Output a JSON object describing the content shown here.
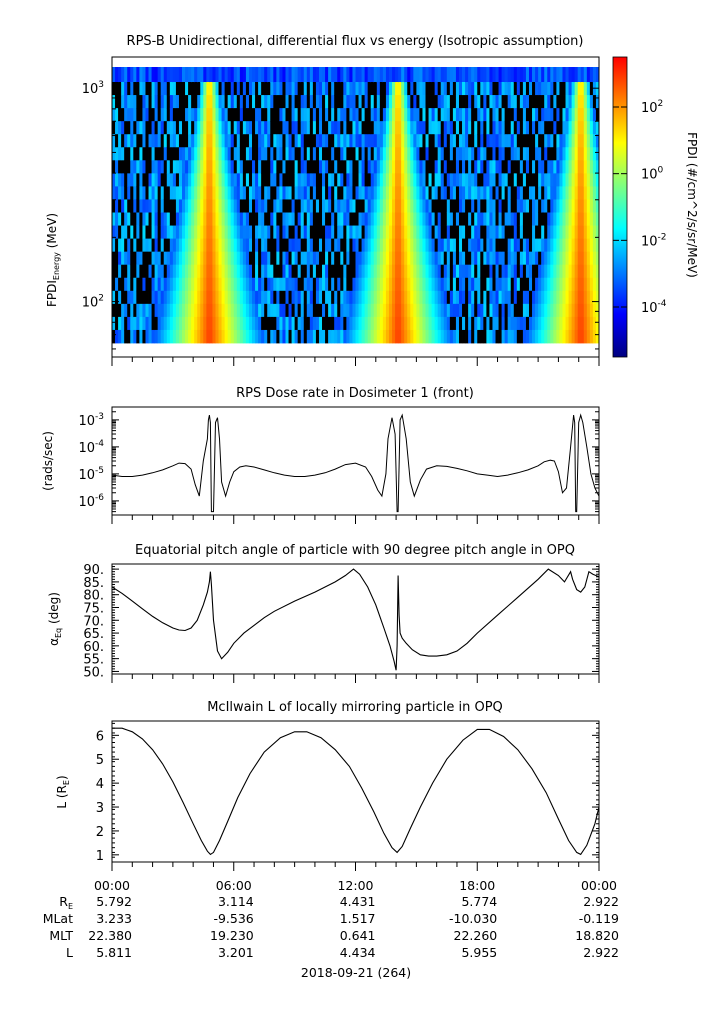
{
  "figure": {
    "date_label": "2018-09-21 (264)",
    "ephemeris_rows": [
      {
        "label": "R",
        "sub": "E",
        "values": [
          "5.792",
          "3.114",
          "4.431",
          "5.774",
          "2.922"
        ]
      },
      {
        "label": "MLat",
        "sub": "",
        "values": [
          "3.233",
          "-9.536",
          "1.517",
          "-10.030",
          "-0.119"
        ]
      },
      {
        "label": "MLT",
        "sub": "",
        "values": [
          "22.380",
          "19.230",
          "0.641",
          "22.260",
          "18.820"
        ]
      },
      {
        "label": "L",
        "sub": "",
        "values": [
          "5.811",
          "3.201",
          "4.434",
          "5.955",
          "2.922"
        ]
      }
    ]
  },
  "chart_data": [
    {
      "type": "heatmap",
      "title": "RPS-B  Unidirectional, differential flux vs energy (Isotropic assumption)",
      "ylabel_main": "FPDI",
      "ylabel_sub": "Energy",
      "ylabel_unit": " (MeV)",
      "yscale": "log",
      "ylim": [
        55,
        1400
      ],
      "y_ticks": [
        {
          "value": 100,
          "base": "10",
          "exp": "2"
        },
        {
          "value": 1000,
          "base": "10",
          "exp": "3"
        }
      ],
      "x_ticks": [
        "00:00",
        "06:00",
        "12:00",
        "18:00",
        "00:00"
      ],
      "xlim_hours": [
        0,
        24
      ],
      "colorbar": {
        "label": "FPDI (#/cm^2/s/sr/MeV)",
        "scale": "log",
        "range_exp": [
          -5.5,
          3.5
        ],
        "ticks": [
          {
            "exp": "2",
            "value": 2
          },
          {
            "exp": "0",
            "value": 0
          },
          {
            "exp": "-2",
            "value": -2
          },
          {
            "exp": "-4",
            "value": -4
          }
        ],
        "colors": [
          "#00007f",
          "#0000ff",
          "#007fff",
          "#00ffff",
          "#7fff7f",
          "#ffff00",
          "#ff7f00",
          "#ff0000"
        ]
      },
      "flux_peaks_hours": [
        4.8,
        14.1,
        23.1
      ],
      "description_levels": {
        "background": -3,
        "peak": 3
      }
    },
    {
      "type": "line",
      "title": "RPS  Dose rate in Dosimeter 1 (front)",
      "ylabel": "(rads/sec)",
      "yscale": "log",
      "ylim": [
        3e-07,
        0.003
      ],
      "y_ticks": [
        {
          "value": 1e-06,
          "base": "10",
          "exp": "-6"
        },
        {
          "value": 1e-05,
          "base": "10",
          "exp": "-5"
        },
        {
          "value": 0.0001,
          "base": "10",
          "exp": "-4"
        },
        {
          "value": 0.001,
          "base": "10",
          "exp": "-3"
        }
      ],
      "xlim_hours": [
        0,
        24
      ],
      "x": [
        0,
        0.5,
        1,
        1.5,
        2,
        2.5,
        3,
        3.3,
        3.6,
        3.9,
        4.1,
        4.3,
        4.5,
        4.7,
        4.75,
        4.8,
        4.85,
        4.9,
        5.0,
        5.1,
        5.2,
        5.3,
        5.4,
        5.6,
        5.8,
        6.0,
        6.3,
        6.6,
        7.0,
        7.5,
        8,
        8.5,
        9,
        9.5,
        10,
        10.5,
        11,
        11.5,
        12,
        12.5,
        12.8,
        13.1,
        13.3,
        13.5,
        13.6,
        13.8,
        13.95,
        14.05,
        14.1,
        14.2,
        14.3,
        14.5,
        14.7,
        14.9,
        15.2,
        15.5,
        16,
        16.5,
        17,
        17.5,
        18,
        18.5,
        19,
        19.5,
        20,
        20.5,
        21,
        21.3,
        21.6,
        21.8,
        22.0,
        22.2,
        22.4,
        22.6,
        22.75,
        22.8,
        22.85,
        22.9,
        23.0,
        23.1,
        23.2,
        23.4,
        23.6,
        23.8,
        24
      ],
      "y": [
        9e-06,
        8e-06,
        8e-06,
        9e-06,
        1.1e-05,
        1.4e-05,
        2e-05,
        2.5e-05,
        2.4e-05,
        1.5e-05,
        4e-06,
        1.5e-06,
        3e-05,
        0.0002,
        0.001,
        0.0015,
        0.0008,
        4e-07,
        4e-07,
        0.0008,
        0.0012,
        0.0002,
        5e-06,
        1.5e-06,
        5e-06,
        1.2e-05,
        1.8e-05,
        2e-05,
        1.8e-05,
        1.4e-05,
        1.1e-05,
        9e-06,
        8e-06,
        8e-06,
        9e-06,
        1.1e-05,
        1.5e-05,
        2.2e-05,
        2.5e-05,
        1.8e-05,
        8e-06,
        2.5e-06,
        1.5e-06,
        1e-05,
        0.0002,
        0.0012,
        0.0003,
        4e-07,
        4e-07,
        0.001,
        0.0015,
        0.0002,
        5e-06,
        1.5e-06,
        6e-06,
        1.5e-05,
        2e-05,
        1.9e-05,
        1.6e-05,
        1.3e-05,
        1e-05,
        9e-06,
        8e-06,
        9e-06,
        1.1e-05,
        1.4e-05,
        2e-05,
        2.8e-05,
        3.2e-05,
        3e-05,
        1.2e-05,
        2e-06,
        3e-06,
        0.0001,
        0.0015,
        0.0008,
        4e-07,
        4e-07,
        0.0008,
        0.0015,
        0.0008,
        0.0001,
        1e-05,
        3e-06,
        1.5e-06
      ]
    },
    {
      "type": "line",
      "title": "Equatorial pitch angle of particle with 90 degree pitch angle in OPQ",
      "ylabel_main": "α",
      "ylabel_sub": "Eq",
      "ylabel_unit": " (deg)",
      "ylim": [
        49,
        92
      ],
      "y_ticks": [
        50,
        55,
        60,
        65,
        70,
        75,
        80,
        85,
        90
      ],
      "xlim_hours": [
        0,
        24
      ],
      "x": [
        0,
        0.5,
        1,
        1.5,
        2,
        2.5,
        3,
        3.3,
        3.6,
        3.9,
        4.2,
        4.5,
        4.7,
        4.8,
        4.85,
        4.9,
        5.0,
        5.2,
        5.4,
        5.7,
        6.0,
        6.5,
        7,
        7.5,
        8,
        9,
        10,
        11,
        11.5,
        11.9,
        12.2,
        12.6,
        13.0,
        13.4,
        13.7,
        13.9,
        14.0,
        14.05,
        14.1,
        14.15,
        14.2,
        14.3,
        14.5,
        14.8,
        15.2,
        15.6,
        16,
        16.5,
        17,
        17.5,
        18,
        19,
        20,
        21,
        21.5,
        22.0,
        22.3,
        22.6,
        22.7,
        22.9,
        23.1,
        23.3,
        23.5,
        23.7,
        24
      ],
      "y": [
        83,
        80.5,
        77.5,
        74.5,
        71.5,
        69,
        67,
        66.2,
        66,
        67,
        70,
        76,
        81,
        85,
        89,
        84,
        70,
        58,
        55,
        57.5,
        61,
        65,
        68,
        71,
        73.5,
        77.5,
        81,
        85,
        87.5,
        90,
        88,
        83,
        76,
        67,
        60,
        54,
        50.5,
        60,
        87.5,
        72,
        65,
        63,
        61,
        58.5,
        56.5,
        56,
        56,
        56.5,
        58,
        61,
        65,
        72,
        79,
        86,
        90,
        87.5,
        85,
        89,
        86,
        82,
        81,
        83,
        89,
        88,
        87
      ]
    },
    {
      "type": "line",
      "title": "McIlwain L of locally mirroring particle in OPQ",
      "ylabel_main": "L (R",
      "ylabel_sub": "E",
      "ylabel_unit": ")",
      "ylim": [
        0.7,
        6.6
      ],
      "y_ticks": [
        1,
        2,
        3,
        4,
        5,
        6
      ],
      "xlim_hours": [
        0,
        24
      ],
      "x": [
        0,
        0.5,
        1,
        1.5,
        2,
        2.5,
        3,
        3.5,
        4,
        4.4,
        4.7,
        4.85,
        5.0,
        5.3,
        5.7,
        6.2,
        6.8,
        7.5,
        8.3,
        9.0,
        9.6,
        10.3,
        11.0,
        11.7,
        12.3,
        12.9,
        13.4,
        13.8,
        14.05,
        14.3,
        14.7,
        15.2,
        15.8,
        16.5,
        17.3,
        18.0,
        18.6,
        19.3,
        20.0,
        20.7,
        21.4,
        22.0,
        22.5,
        22.9,
        23.1,
        23.4,
        23.8,
        24
      ],
      "y": [
        6.3,
        6.3,
        6.15,
        5.85,
        5.4,
        4.8,
        4.05,
        3.2,
        2.3,
        1.6,
        1.15,
        1.02,
        1.1,
        1.6,
        2.4,
        3.4,
        4.4,
        5.3,
        5.9,
        6.15,
        6.15,
        5.9,
        5.4,
        4.7,
        3.8,
        2.8,
        1.9,
        1.3,
        1.1,
        1.35,
        2.1,
        3.0,
        4.0,
        5.0,
        5.8,
        6.25,
        6.25,
        5.95,
        5.4,
        4.6,
        3.6,
        2.5,
        1.6,
        1.1,
        1.02,
        1.4,
        2.3,
        3.0
      ]
    }
  ]
}
